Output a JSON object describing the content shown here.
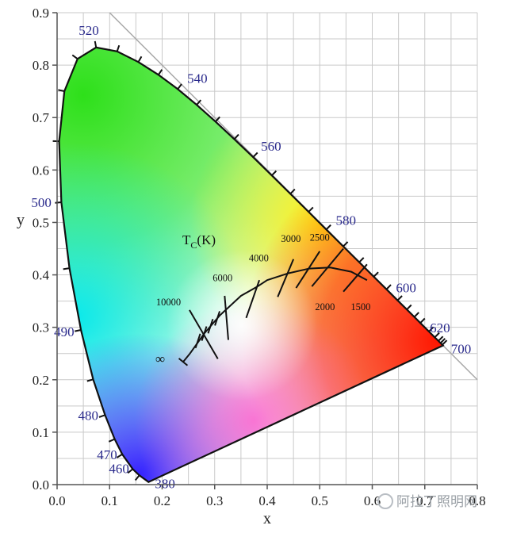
{
  "chart_data": {
    "type": "diagram",
    "axes": {
      "x": {
        "label": "x",
        "ticks": [
          "0.0",
          "0.1",
          "0.2",
          "0.3",
          "0.4",
          "0.5",
          "0.6",
          "0.7",
          "0.8"
        ],
        "range": [
          0,
          0.8
        ]
      },
      "y": {
        "label": "y",
        "ticks": [
          "0.0",
          "0.1",
          "0.2",
          "0.3",
          "0.4",
          "0.5",
          "0.6",
          "0.7",
          "0.8",
          "0.9"
        ],
        "range": [
          0,
          0.9
        ]
      }
    },
    "grid": true,
    "locus_points": [
      {
        "nm": 380,
        "x": 0.1741,
        "y": 0.005
      },
      {
        "nm": 450,
        "x": 0.1566,
        "y": 0.0177
      },
      {
        "nm": 460,
        "x": 0.144,
        "y": 0.0297
      },
      {
        "nm": 470,
        "x": 0.1241,
        "y": 0.0578
      },
      {
        "nm": 475,
        "x": 0.1096,
        "y": 0.0868
      },
      {
        "nm": 480,
        "x": 0.0913,
        "y": 0.1327
      },
      {
        "nm": 485,
        "x": 0.0687,
        "y": 0.2007
      },
      {
        "nm": 490,
        "x": 0.0454,
        "y": 0.295
      },
      {
        "nm": 495,
        "x": 0.0235,
        "y": 0.4127
      },
      {
        "nm": 500,
        "x": 0.0082,
        "y": 0.5384
      },
      {
        "nm": 505,
        "x": 0.0039,
        "y": 0.6548
      },
      {
        "nm": 510,
        "x": 0.0139,
        "y": 0.7502
      },
      {
        "nm": 515,
        "x": 0.0389,
        "y": 0.812
      },
      {
        "nm": 520,
        "x": 0.0743,
        "y": 0.8338
      },
      {
        "nm": 525,
        "x": 0.1142,
        "y": 0.8262
      },
      {
        "nm": 530,
        "x": 0.1547,
        "y": 0.8059
      },
      {
        "nm": 535,
        "x": 0.1929,
        "y": 0.7816
      },
      {
        "nm": 540,
        "x": 0.2296,
        "y": 0.7543
      },
      {
        "nm": 545,
        "x": 0.2658,
        "y": 0.7243
      },
      {
        "nm": 550,
        "x": 0.3016,
        "y": 0.6923
      },
      {
        "nm": 555,
        "x": 0.3373,
        "y": 0.6589
      },
      {
        "nm": 560,
        "x": 0.3731,
        "y": 0.6245
      },
      {
        "nm": 565,
        "x": 0.4087,
        "y": 0.5896
      },
      {
        "nm": 570,
        "x": 0.4441,
        "y": 0.5547
      },
      {
        "nm": 575,
        "x": 0.4788,
        "y": 0.5202
      },
      {
        "nm": 580,
        "x": 0.5125,
        "y": 0.4866
      },
      {
        "nm": 585,
        "x": 0.5448,
        "y": 0.4544
      },
      {
        "nm": 590,
        "x": 0.5752,
        "y": 0.4242
      },
      {
        "nm": 595,
        "x": 0.6029,
        "y": 0.3965
      },
      {
        "nm": 600,
        "x": 0.627,
        "y": 0.3725
      },
      {
        "nm": 605,
        "x": 0.6482,
        "y": 0.3514
      },
      {
        "nm": 610,
        "x": 0.6658,
        "y": 0.334
      },
      {
        "nm": 615,
        "x": 0.6801,
        "y": 0.3197
      },
      {
        "nm": 620,
        "x": 0.6915,
        "y": 0.3083
      },
      {
        "nm": 630,
        "x": 0.7079,
        "y": 0.292
      },
      {
        "nm": 640,
        "x": 0.719,
        "y": 0.2809
      },
      {
        "nm": 650,
        "x": 0.726,
        "y": 0.274
      },
      {
        "nm": 660,
        "x": 0.73,
        "y": 0.27
      },
      {
        "nm": 680,
        "x": 0.7334,
        "y": 0.2666
      },
      {
        "nm": 700,
        "x": 0.7347,
        "y": 0.2653
      }
    ],
    "wavelength_labels": [
      {
        "text": "380",
        "nm": 380
      },
      {
        "text": "460",
        "nm": 460
      },
      {
        "text": "470",
        "nm": 470
      },
      {
        "text": "480",
        "nm": 480
      },
      {
        "text": "490",
        "nm": 490
      },
      {
        "text": "500",
        "nm": 500
      },
      {
        "text": "520",
        "nm": 520
      },
      {
        "text": "540",
        "nm": 540
      },
      {
        "text": "560",
        "nm": 560
      },
      {
        "text": "580",
        "nm": 580
      },
      {
        "text": "600",
        "nm": 600
      },
      {
        "text": "620",
        "nm": 620
      },
      {
        "text": "700",
        "nm": 700
      }
    ],
    "planckian_locus": [
      {
        "x": 0.24,
        "y": 0.234
      },
      {
        "x": 0.253,
        "y": 0.25
      },
      {
        "x": 0.28,
        "y": 0.288
      },
      {
        "x": 0.31,
        "y": 0.323
      },
      {
        "x": 0.35,
        "y": 0.36
      },
      {
        "x": 0.38,
        "y": 0.377
      },
      {
        "x": 0.4,
        "y": 0.39
      },
      {
        "x": 0.44,
        "y": 0.403
      },
      {
        "x": 0.48,
        "y": 0.412
      },
      {
        "x": 0.52,
        "y": 0.414
      },
      {
        "x": 0.56,
        "y": 0.406
      },
      {
        "x": 0.59,
        "y": 0.39
      }
    ],
    "isotemperature_lines": [
      {
        "label": "10000",
        "x1": 0.252,
        "y1": 0.333,
        "x2": 0.306,
        "y2": 0.24,
        "label_x": 0.212,
        "label_y": 0.342
      },
      {
        "label": "6000",
        "x1": 0.319,
        "y1": 0.36,
        "x2": 0.326,
        "y2": 0.276,
        "label_x": 0.315,
        "label_y": 0.388
      },
      {
        "label": "4000",
        "x1": 0.385,
        "y1": 0.39,
        "x2": 0.36,
        "y2": 0.318,
        "label_x": 0.384,
        "label_y": 0.426
      },
      {
        "label": "3000",
        "x1": 0.45,
        "y1": 0.43,
        "x2": 0.42,
        "y2": 0.358,
        "label_x": 0.445,
        "label_y": 0.463
      },
      {
        "label": "2500",
        "x1": 0.5,
        "y1": 0.445,
        "x2": 0.455,
        "y2": 0.375,
        "label_x": 0.5,
        "label_y": 0.465
      },
      {
        "label": "2000",
        "x1": 0.545,
        "y1": 0.45,
        "x2": 0.485,
        "y2": 0.378,
        "label_x": 0.51,
        "label_y": 0.333
      },
      {
        "label": "1500",
        "x1": 0.59,
        "y1": 0.42,
        "x2": 0.545,
        "y2": 0.368,
        "label_x": 0.578,
        "label_y": 0.333
      }
    ],
    "small_ticks": [
      {
        "x": 0.268,
        "y": 0.274
      },
      {
        "x": 0.28,
        "y": 0.288
      },
      {
        "x": 0.292,
        "y": 0.302
      },
      {
        "x": 0.305,
        "y": 0.317
      }
    ],
    "tc_label": {
      "main": "T",
      "sub": "C",
      "rest": "(K)"
    },
    "infinity_label": "∞",
    "watermark": "阿拉丁照明网"
  }
}
